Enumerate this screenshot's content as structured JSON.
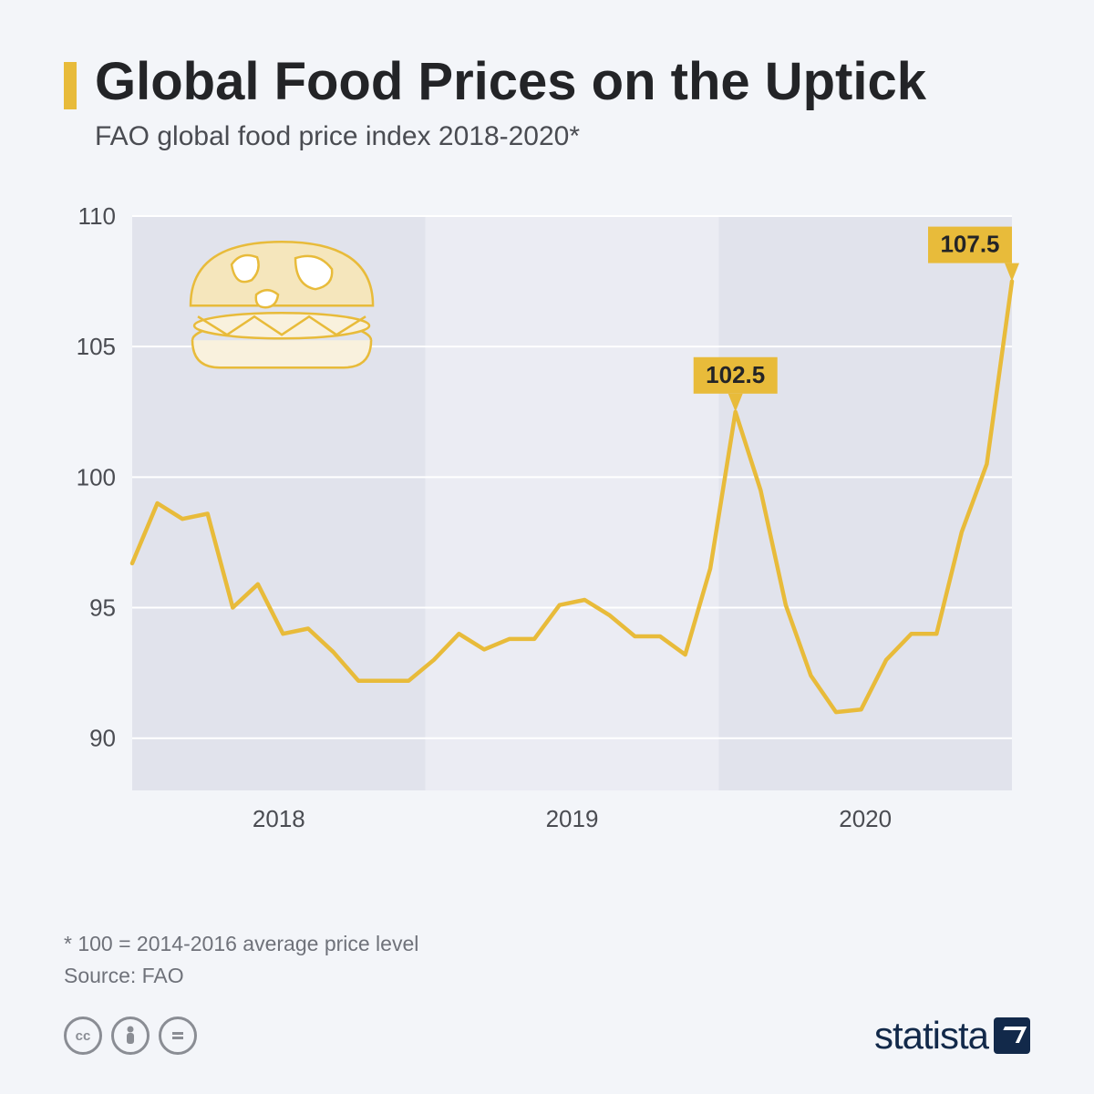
{
  "accent_color": "#e8bb3a",
  "title": "Global Food Prices on the Uptick",
  "subtitle": "FAO global food price index 2018-2020*",
  "footnote_line1": "* 100 = 2014-2016 average price level",
  "footnote_line2": "Source: FAO",
  "logo_text": "statista",
  "chart": {
    "type": "line",
    "ylim": [
      88,
      110
    ],
    "yticks": [
      90,
      95,
      100,
      105,
      110
    ],
    "years": [
      "2018",
      "2019",
      "2020"
    ],
    "n_points": 36,
    "values": [
      96.7,
      99.0,
      98.4,
      98.6,
      95.0,
      95.9,
      94.0,
      94.2,
      93.3,
      92.2,
      92.2,
      92.2,
      93.0,
      94.0,
      93.4,
      93.8,
      93.8,
      95.1,
      95.3,
      94.7,
      93.9,
      93.9,
      93.2,
      96.5,
      102.5,
      99.5,
      95.1,
      92.4,
      91.0,
      91.1,
      93.0,
      94.0,
      94.0,
      97.9,
      100.5,
      107.5
    ],
    "callouts": [
      {
        "index": 24,
        "label": "102.5"
      },
      {
        "index": 35,
        "label": "107.5"
      }
    ],
    "line_color": "#e8bb3a",
    "line_width": 4.5,
    "grid_color": "#ffffff",
    "tick_font_size": 26,
    "tick_color": "#4a4c52",
    "band_colors": [
      "#e1e3ec",
      "#ebecf3",
      "#e1e3ec"
    ],
    "background": "#f3f5f9"
  }
}
